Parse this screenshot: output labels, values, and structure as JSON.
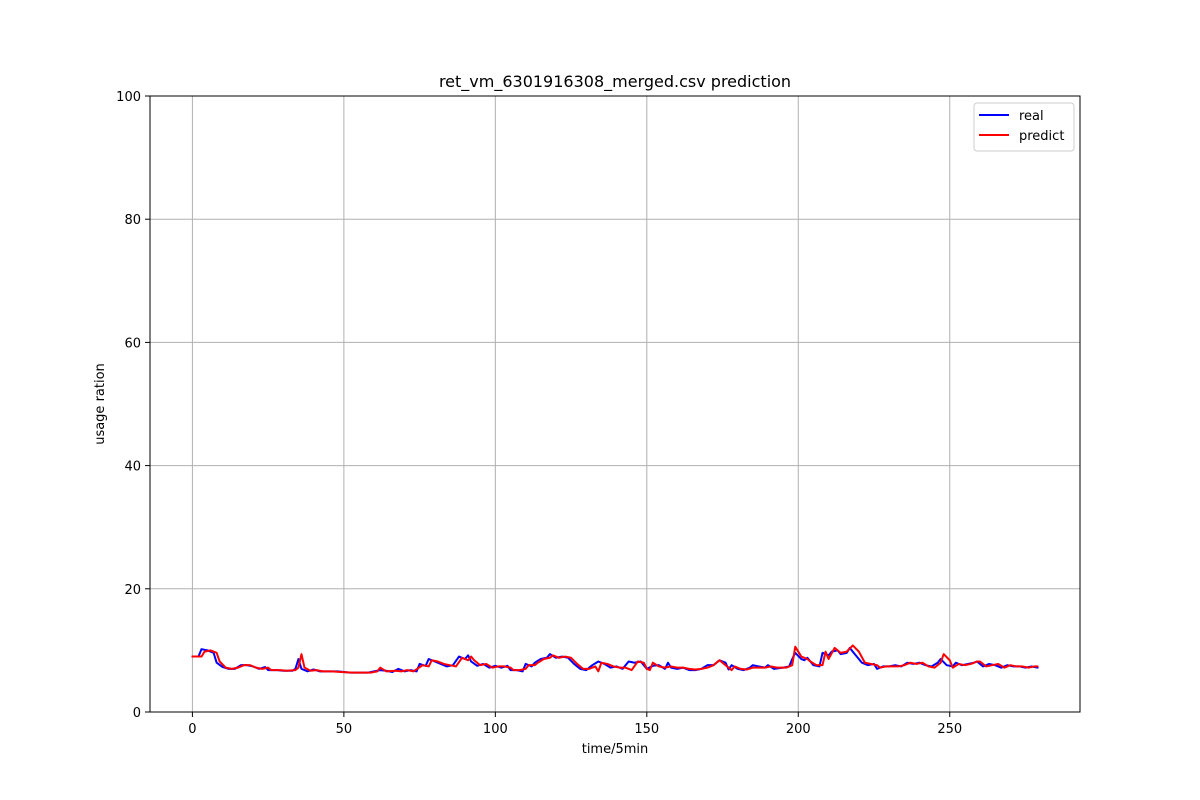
{
  "chart_data": {
    "type": "line",
    "title": "ret_vm_6301916308_merged.csv prediction",
    "xlabel": "time/5min",
    "ylabel": "usage ration",
    "xlim": [
      -14,
      293
    ],
    "ylim": [
      0,
      100
    ],
    "xticks": [
      0,
      50,
      100,
      150,
      200,
      250
    ],
    "yticks": [
      0,
      20,
      40,
      60,
      80,
      100
    ],
    "grid": true,
    "legend_position": "upper right",
    "series": [
      {
        "name": "real",
        "color": "#0000ff",
        "points": [
          [
            0,
            9.0
          ],
          [
            2,
            9.0
          ],
          [
            3,
            10.2
          ],
          [
            5,
            10.0
          ],
          [
            7,
            9.6
          ],
          [
            8,
            8.0
          ],
          [
            10,
            7.3
          ],
          [
            12,
            7.0
          ],
          [
            14,
            7.0
          ],
          [
            16,
            7.6
          ],
          [
            18,
            7.6
          ],
          [
            20,
            7.4
          ],
          [
            22,
            7.0
          ],
          [
            24,
            7.3
          ],
          [
            25,
            6.8
          ],
          [
            28,
            6.8
          ],
          [
            30,
            6.7
          ],
          [
            33,
            6.7
          ],
          [
            34,
            7.0
          ],
          [
            35,
            8.6
          ],
          [
            36,
            7.0
          ],
          [
            38,
            6.6
          ],
          [
            40,
            6.9
          ],
          [
            42,
            6.6
          ],
          [
            45,
            6.6
          ],
          [
            48,
            6.6
          ],
          [
            52,
            6.4
          ],
          [
            55,
            6.4
          ],
          [
            58,
            6.4
          ],
          [
            60,
            6.6
          ],
          [
            62,
            6.8
          ],
          [
            64,
            6.7
          ],
          [
            66,
            6.5
          ],
          [
            68,
            7.0
          ],
          [
            70,
            6.6
          ],
          [
            72,
            6.8
          ],
          [
            74,
            6.6
          ],
          [
            75,
            7.8
          ],
          [
            77,
            7.5
          ],
          [
            78,
            8.6
          ],
          [
            80,
            8.2
          ],
          [
            82,
            7.8
          ],
          [
            84,
            7.4
          ],
          [
            86,
            7.6
          ],
          [
            88,
            9.0
          ],
          [
            90,
            8.6
          ],
          [
            91,
            9.2
          ],
          [
            92,
            8.2
          ],
          [
            94,
            7.5
          ],
          [
            96,
            7.8
          ],
          [
            98,
            7.2
          ],
          [
            100,
            7.5
          ],
          [
            102,
            7.2
          ],
          [
            104,
            7.5
          ],
          [
            105,
            6.8
          ],
          [
            107,
            6.8
          ],
          [
            109,
            6.6
          ],
          [
            110,
            7.8
          ],
          [
            112,
            7.4
          ],
          [
            113,
            8.0
          ],
          [
            115,
            8.6
          ],
          [
            117,
            8.8
          ],
          [
            118,
            9.4
          ],
          [
            120,
            8.8
          ],
          [
            122,
            9.0
          ],
          [
            124,
            8.8
          ],
          [
            126,
            7.8
          ],
          [
            128,
            7.0
          ],
          [
            130,
            6.8
          ],
          [
            132,
            7.6
          ],
          [
            134,
            8.2
          ],
          [
            136,
            7.8
          ],
          [
            138,
            7.2
          ],
          [
            140,
            7.4
          ],
          [
            142,
            7.0
          ],
          [
            144,
            8.2
          ],
          [
            146,
            8.0
          ],
          [
            148,
            8.2
          ],
          [
            150,
            7.0
          ],
          [
            152,
            7.5
          ],
          [
            154,
            7.6
          ],
          [
            156,
            7.0
          ],
          [
            157,
            8.0
          ],
          [
            158,
            7.2
          ],
          [
            160,
            7.0
          ],
          [
            162,
            7.2
          ],
          [
            164,
            6.8
          ],
          [
            166,
            6.8
          ],
          [
            168,
            7.0
          ],
          [
            170,
            7.6
          ],
          [
            172,
            7.6
          ],
          [
            174,
            8.4
          ],
          [
            176,
            8.0
          ],
          [
            177,
            6.9
          ],
          [
            178,
            7.6
          ],
          [
            180,
            7.0
          ],
          [
            182,
            6.8
          ],
          [
            184,
            7.2
          ],
          [
            185,
            7.6
          ],
          [
            187,
            7.4
          ],
          [
            189,
            7.2
          ],
          [
            190,
            7.6
          ],
          [
            192,
            7.0
          ],
          [
            195,
            7.2
          ],
          [
            197,
            7.4
          ],
          [
            198,
            8.6
          ],
          [
            199,
            9.6
          ],
          [
            201,
            8.6
          ],
          [
            202,
            8.4
          ],
          [
            203,
            8.8
          ],
          [
            205,
            7.6
          ],
          [
            207,
            7.4
          ],
          [
            208,
            9.6
          ],
          [
            210,
            9.2
          ],
          [
            211,
            9.8
          ],
          [
            213,
            10.0
          ],
          [
            214,
            9.4
          ],
          [
            216,
            9.6
          ],
          [
            217,
            10.4
          ],
          [
            219,
            9.2
          ],
          [
            221,
            8.0
          ],
          [
            223,
            7.6
          ],
          [
            225,
            7.8
          ],
          [
            226,
            7.0
          ],
          [
            228,
            7.4
          ],
          [
            230,
            7.4
          ],
          [
            232,
            7.6
          ],
          [
            234,
            7.4
          ],
          [
            236,
            8.0
          ],
          [
            238,
            7.8
          ],
          [
            240,
            8.0
          ],
          [
            242,
            7.6
          ],
          [
            244,
            7.4
          ],
          [
            246,
            8.0
          ],
          [
            247,
            8.6
          ],
          [
            249,
            7.6
          ],
          [
            251,
            7.4
          ],
          [
            252,
            8.0
          ],
          [
            254,
            7.6
          ],
          [
            256,
            7.8
          ],
          [
            258,
            8.0
          ],
          [
            259,
            8.2
          ],
          [
            261,
            7.4
          ],
          [
            263,
            7.8
          ],
          [
            265,
            7.6
          ],
          [
            267,
            7.2
          ],
          [
            269,
            7.6
          ],
          [
            271,
            7.4
          ],
          [
            273,
            7.4
          ],
          [
            275,
            7.2
          ],
          [
            277,
            7.4
          ],
          [
            279,
            7.2
          ]
        ]
      },
      {
        "name": "predict",
        "color": "#ff0000",
        "points": [
          [
            0,
            9.0
          ],
          [
            3,
            9.0
          ],
          [
            4,
            9.8
          ],
          [
            6,
            10.0
          ],
          [
            8,
            9.6
          ],
          [
            9,
            8.2
          ],
          [
            11,
            7.2
          ],
          [
            13,
            7.0
          ],
          [
            15,
            7.2
          ],
          [
            17,
            7.6
          ],
          [
            19,
            7.6
          ],
          [
            21,
            7.2
          ],
          [
            23,
            7.0
          ],
          [
            25,
            7.2
          ],
          [
            26,
            6.8
          ],
          [
            29,
            6.8
          ],
          [
            31,
            6.7
          ],
          [
            34,
            6.8
          ],
          [
            35,
            7.2
          ],
          [
            36,
            9.4
          ],
          [
            37,
            7.2
          ],
          [
            39,
            6.7
          ],
          [
            41,
            6.8
          ],
          [
            43,
            6.6
          ],
          [
            46,
            6.6
          ],
          [
            49,
            6.5
          ],
          [
            53,
            6.4
          ],
          [
            56,
            6.4
          ],
          [
            59,
            6.4
          ],
          [
            61,
            6.6
          ],
          [
            62,
            7.2
          ],
          [
            64,
            6.6
          ],
          [
            67,
            6.7
          ],
          [
            69,
            6.6
          ],
          [
            71,
            6.8
          ],
          [
            73,
            6.6
          ],
          [
            76,
            7.6
          ],
          [
            78,
            7.4
          ],
          [
            79,
            8.4
          ],
          [
            81,
            8.2
          ],
          [
            83,
            7.8
          ],
          [
            85,
            7.6
          ],
          [
            87,
            7.4
          ],
          [
            89,
            8.8
          ],
          [
            91,
            8.4
          ],
          [
            92,
            9.0
          ],
          [
            93,
            8.4
          ],
          [
            95,
            7.6
          ],
          [
            97,
            7.8
          ],
          [
            99,
            7.2
          ],
          [
            101,
            7.4
          ],
          [
            103,
            7.4
          ],
          [
            105,
            7.2
          ],
          [
            106,
            6.8
          ],
          [
            108,
            6.8
          ],
          [
            110,
            7.0
          ],
          [
            111,
            7.6
          ],
          [
            113,
            7.6
          ],
          [
            114,
            8.0
          ],
          [
            116,
            8.6
          ],
          [
            118,
            8.8
          ],
          [
            119,
            9.2
          ],
          [
            121,
            8.8
          ],
          [
            123,
            9.0
          ],
          [
            125,
            8.8
          ],
          [
            127,
            7.8
          ],
          [
            129,
            7.0
          ],
          [
            131,
            7.0
          ],
          [
            133,
            7.4
          ],
          [
            134,
            6.6
          ],
          [
            135,
            8.0
          ],
          [
            137,
            7.8
          ],
          [
            139,
            7.4
          ],
          [
            141,
            7.2
          ],
          [
            143,
            7.2
          ],
          [
            145,
            6.8
          ],
          [
            147,
            8.2
          ],
          [
            149,
            8.0
          ],
          [
            150,
            7.0
          ],
          [
            151,
            6.8
          ],
          [
            152,
            8.0
          ],
          [
            154,
            7.4
          ],
          [
            156,
            7.2
          ],
          [
            158,
            7.4
          ],
          [
            160,
            7.2
          ],
          [
            162,
            7.2
          ],
          [
            164,
            7.0
          ],
          [
            166,
            6.9
          ],
          [
            168,
            7.0
          ],
          [
            170,
            7.2
          ],
          [
            172,
            7.6
          ],
          [
            174,
            8.4
          ],
          [
            176,
            7.6
          ],
          [
            178,
            6.8
          ],
          [
            179,
            7.4
          ],
          [
            181,
            7.0
          ],
          [
            183,
            6.9
          ],
          [
            185,
            7.2
          ],
          [
            187,
            7.2
          ],
          [
            189,
            7.2
          ],
          [
            191,
            7.4
          ],
          [
            193,
            7.2
          ],
          [
            196,
            7.2
          ],
          [
            198,
            7.6
          ],
          [
            199,
            10.6
          ],
          [
            201,
            9.0
          ],
          [
            203,
            8.6
          ],
          [
            204,
            8.2
          ],
          [
            206,
            7.6
          ],
          [
            208,
            7.6
          ],
          [
            209,
            9.8
          ],
          [
            210,
            8.6
          ],
          [
            212,
            10.4
          ],
          [
            214,
            9.6
          ],
          [
            216,
            9.8
          ],
          [
            218,
            10.8
          ],
          [
            220,
            9.8
          ],
          [
            222,
            8.0
          ],
          [
            224,
            7.8
          ],
          [
            226,
            7.6
          ],
          [
            227,
            7.2
          ],
          [
            229,
            7.4
          ],
          [
            231,
            7.4
          ],
          [
            233,
            7.4
          ],
          [
            235,
            7.6
          ],
          [
            237,
            8.0
          ],
          [
            239,
            7.8
          ],
          [
            241,
            8.0
          ],
          [
            243,
            7.4
          ],
          [
            245,
            7.2
          ],
          [
            247,
            8.0
          ],
          [
            248,
            9.4
          ],
          [
            250,
            8.4
          ],
          [
            251,
            7.2
          ],
          [
            253,
            7.8
          ],
          [
            255,
            7.6
          ],
          [
            257,
            7.8
          ],
          [
            259,
            8.2
          ],
          [
            260,
            8.2
          ],
          [
            262,
            7.4
          ],
          [
            264,
            7.6
          ],
          [
            266,
            7.8
          ],
          [
            268,
            7.2
          ],
          [
            270,
            7.6
          ],
          [
            272,
            7.4
          ],
          [
            274,
            7.4
          ],
          [
            276,
            7.2
          ],
          [
            278,
            7.4
          ],
          [
            279,
            7.4
          ]
        ]
      }
    ]
  }
}
